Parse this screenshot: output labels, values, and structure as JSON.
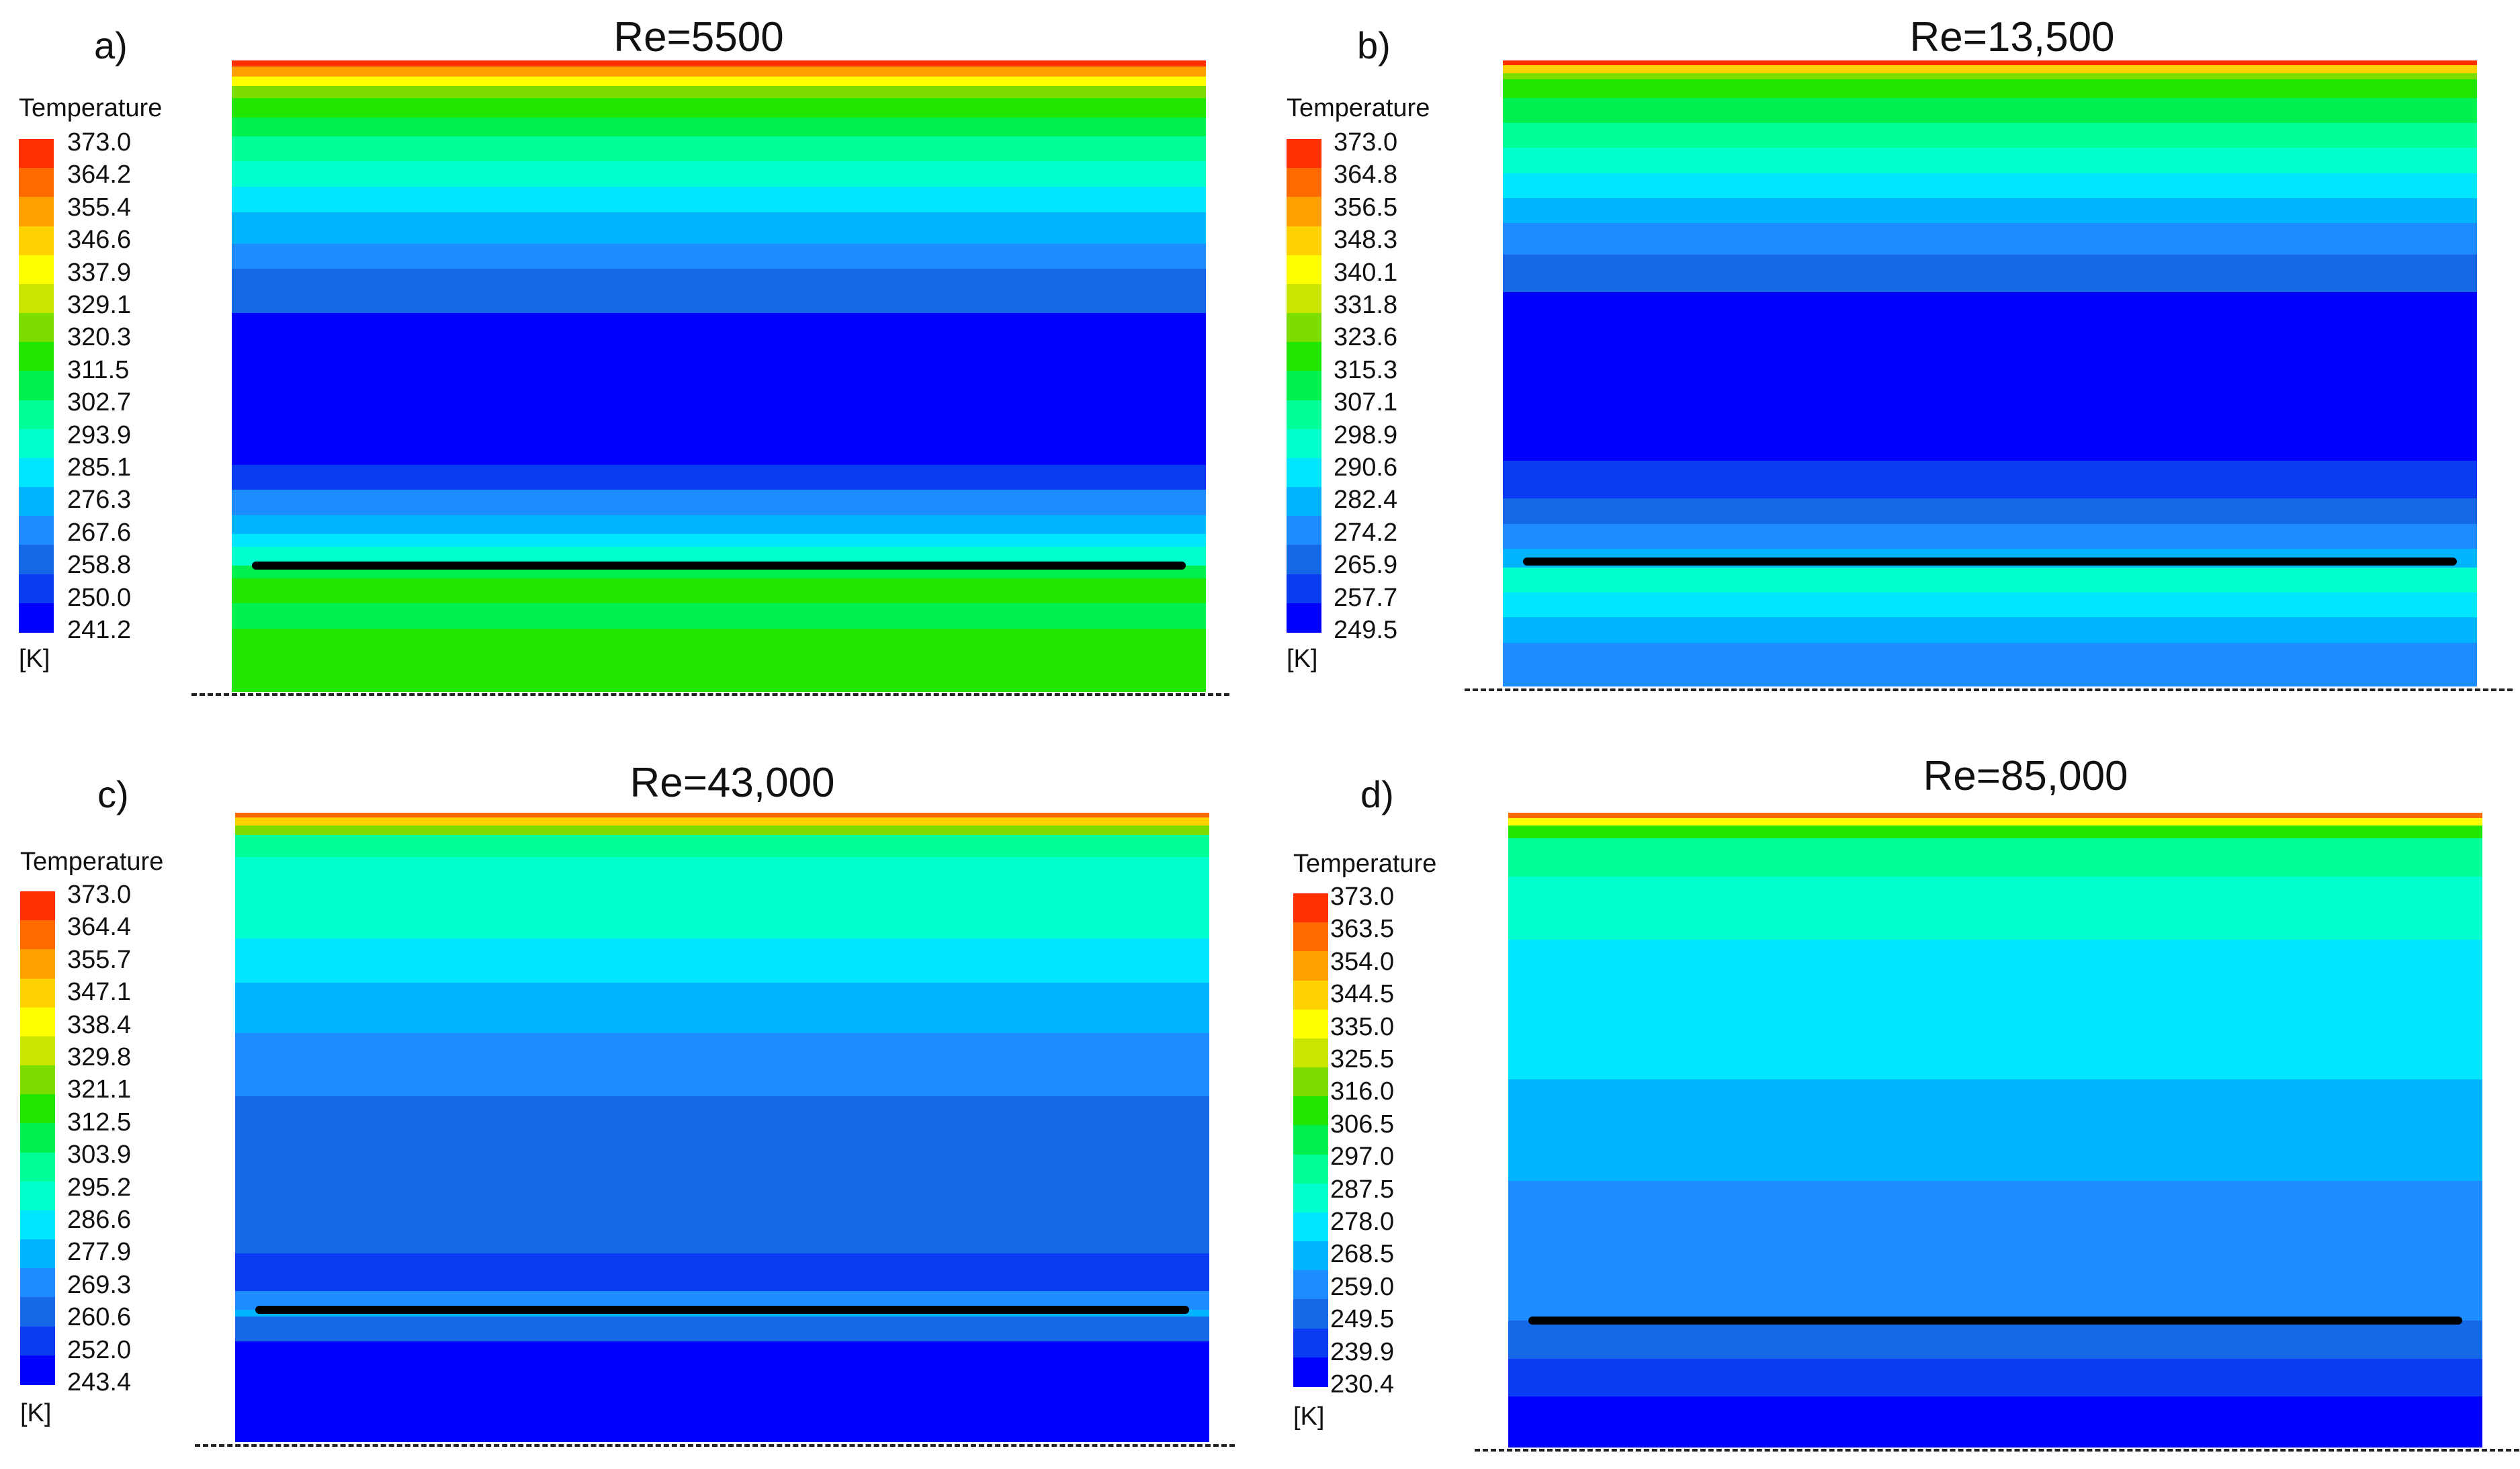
{
  "palette": [
    "#0000ff",
    "#0a3df2",
    "#1669e6",
    "#1c8cff",
    "#00b4ff",
    "#00e6ff",
    "#00ffcc",
    "#00ff99",
    "#00f050",
    "#22e600",
    "#7ddc00",
    "#c8e600",
    "#ffff00",
    "#ffd200",
    "#ffa000",
    "#ff6a00",
    "#ff3000"
  ],
  "panels": [
    {
      "letter": "a)",
      "title": "Re=5500",
      "legend_title": "Temperature",
      "unit": "[K]",
      "ticks": [
        "373.0",
        "364.2",
        "355.4",
        "346.6",
        "337.9",
        "329.1",
        "320.3",
        "311.5",
        "302.7",
        "293.9",
        "285.1",
        "276.3",
        "267.6",
        "258.8",
        "250.0",
        "241.2"
      ],
      "plate_fraction": 0.8,
      "field_profile": [
        [
          0.0,
          16
        ],
        [
          0.01,
          14
        ],
        [
          0.025,
          12
        ],
        [
          0.04,
          10
        ],
        [
          0.06,
          9
        ],
        [
          0.09,
          8
        ],
        [
          0.12,
          7
        ],
        [
          0.16,
          6
        ],
        [
          0.2,
          5
        ],
        [
          0.24,
          4
        ],
        [
          0.29,
          3
        ],
        [
          0.33,
          2
        ],
        [
          0.4,
          0
        ],
        [
          0.64,
          1
        ],
        [
          0.68,
          3
        ],
        [
          0.72,
          4
        ],
        [
          0.75,
          5
        ],
        [
          0.77,
          6
        ],
        [
          0.8,
          8
        ],
        [
          0.82,
          9
        ],
        [
          0.86,
          8
        ],
        [
          0.9,
          9
        ]
      ]
    },
    {
      "letter": "b)",
      "title": "Re=13,500",
      "legend_title": "Temperature",
      "unit": "[K]",
      "ticks": [
        "373.0",
        "364.8",
        "356.5",
        "348.3",
        "340.1",
        "331.8",
        "323.6",
        "315.3",
        "307.1",
        "298.9",
        "290.6",
        "282.4",
        "274.2",
        "265.9",
        "257.7",
        "249.5"
      ],
      "plate_fraction": 0.8,
      "field_profile": [
        [
          0.0,
          16
        ],
        [
          0.008,
          13
        ],
        [
          0.02,
          10
        ],
        [
          0.03,
          9
        ],
        [
          0.06,
          8
        ],
        [
          0.1,
          7
        ],
        [
          0.14,
          6
        ],
        [
          0.18,
          5
        ],
        [
          0.22,
          4
        ],
        [
          0.26,
          3
        ],
        [
          0.31,
          2
        ],
        [
          0.37,
          0
        ],
        [
          0.64,
          1
        ],
        [
          0.7,
          2
        ],
        [
          0.74,
          3
        ],
        [
          0.78,
          4
        ],
        [
          0.81,
          6
        ],
        [
          0.85,
          5
        ],
        [
          0.89,
          4
        ],
        [
          0.93,
          3
        ]
      ]
    },
    {
      "letter": "c)",
      "title": "Re=43,000",
      "legend_title": "Temperature",
      "unit": "[K]",
      "ticks": [
        "373.0",
        "364.4",
        "355.7",
        "347.1",
        "338.4",
        "329.8",
        "321.1",
        "312.5",
        "303.9",
        "295.2",
        "286.6",
        "277.9",
        "269.3",
        "260.6",
        "252.0",
        "243.4"
      ],
      "plate_fraction": 0.79,
      "field_profile": [
        [
          0.0,
          15
        ],
        [
          0.008,
          13
        ],
        [
          0.02,
          10
        ],
        [
          0.035,
          7
        ],
        [
          0.07,
          6
        ],
        [
          0.2,
          5
        ],
        [
          0.27,
          4
        ],
        [
          0.35,
          3
        ],
        [
          0.45,
          2
        ],
        [
          0.62,
          2
        ],
        [
          0.7,
          1
        ],
        [
          0.76,
          3
        ],
        [
          0.79,
          4
        ],
        [
          0.8,
          2
        ],
        [
          0.84,
          0
        ]
      ]
    },
    {
      "letter": "d)",
      "title": "Re=85,000",
      "legend_title": "Temperature",
      "unit": "[K]",
      "ticks": [
        "373.0",
        "363.5",
        "354.0",
        "344.5",
        "335.0",
        "325.5",
        "316.0",
        "306.5",
        "297.0",
        "287.5",
        "278.0",
        "268.5",
        "259.0",
        "249.5",
        "239.9",
        "230.4"
      ],
      "plate_fraction": 0.8,
      "field_profile": [
        [
          0.0,
          15
        ],
        [
          0.008,
          12
        ],
        [
          0.02,
          9
        ],
        [
          0.04,
          7
        ],
        [
          0.1,
          6
        ],
        [
          0.2,
          5
        ],
        [
          0.42,
          4
        ],
        [
          0.58,
          3
        ],
        [
          0.8,
          2
        ],
        [
          0.86,
          1
        ],
        [
          0.92,
          0
        ]
      ]
    }
  ]
}
